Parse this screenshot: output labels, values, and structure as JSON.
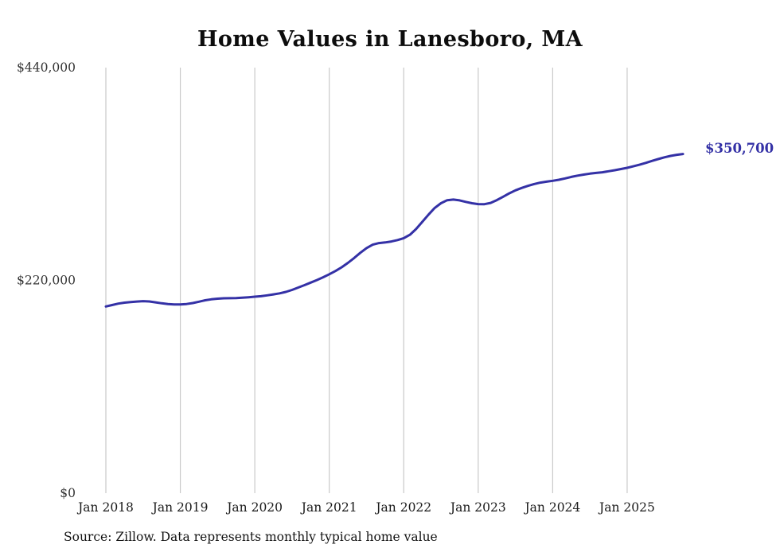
{
  "page": {
    "background": "#ffffff"
  },
  "chart_data": {
    "type": "line",
    "title": "Home Values in Lanesboro, MA",
    "source": "Source: Zillow. Data represents monthly typical home value",
    "end_label": "$350,700",
    "latest_value": 350700,
    "line_color": "#3431a6",
    "grid_color": "#c9c9c9",
    "grid": "vertical",
    "legend": "none",
    "ylim": [
      0,
      440000
    ],
    "y_ticks": [
      0,
      220000,
      440000
    ],
    "y_tick_labels": [
      "$0",
      "$220,000",
      "$440,000"
    ],
    "x_tick_labels": [
      "Jan 2018",
      "Jan 2019",
      "Jan 2020",
      "Jan 2021",
      "Jan 2022",
      "Jan 2023",
      "Jan 2024",
      "Jan 2025"
    ],
    "x_start": "Jan 2018",
    "x_interval": "monthly",
    "series": [
      {
        "name": "Typical home value",
        "values": [
          193000,
          194500,
          196000,
          197000,
          197600,
          198100,
          198500,
          198200,
          197300,
          196300,
          195600,
          195200,
          195100,
          195600,
          196600,
          198000,
          199400,
          200400,
          201100,
          201500,
          201600,
          201700,
          202100,
          202600,
          203100,
          203600,
          204500,
          205500,
          206600,
          208100,
          210100,
          212600,
          215100,
          217700,
          220300,
          223200,
          226300,
          229700,
          233600,
          238100,
          243100,
          248500,
          253400,
          256900,
          258600,
          259200,
          260200,
          261700,
          263700,
          267200,
          273100,
          280500,
          288000,
          294900,
          299800,
          302900,
          303600,
          302700,
          301200,
          299800,
          298900,
          298800,
          300100,
          303000,
          306400,
          310000,
          313100,
          315600,
          317700,
          319600,
          321100,
          322100,
          323000,
          324000,
          325400,
          327000,
          328300,
          329400,
          330400,
          331100,
          331800,
          332800,
          333900,
          335100,
          336400,
          337900,
          339600,
          341500,
          343500,
          345400,
          347200,
          348700,
          349900,
          350700
        ]
      }
    ]
  }
}
